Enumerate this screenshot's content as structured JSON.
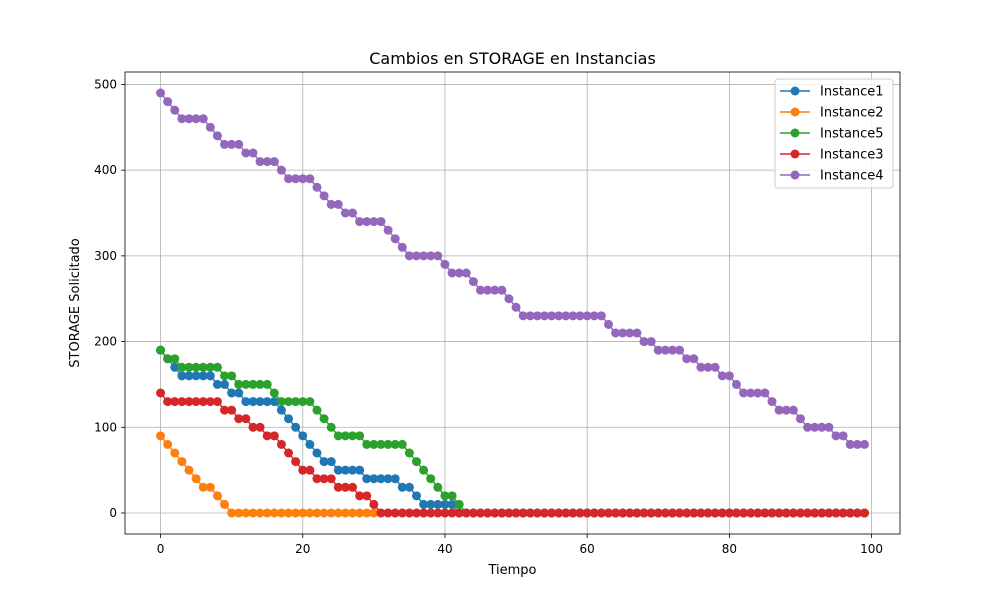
{
  "chart_data": {
    "type": "line",
    "title": "Cambios en STORAGE en Instancias",
    "xlabel": "Tiempo",
    "ylabel": "STORAGE Solicitado",
    "xlim": [
      -5,
      104
    ],
    "ylim": [
      -24.5,
      514.5
    ],
    "xticks": [
      0,
      20,
      40,
      60,
      80,
      100
    ],
    "yticks": [
      0,
      100,
      200,
      300,
      400,
      500
    ],
    "grid": true,
    "legend_position": "top-right",
    "marker": "circle",
    "series": [
      {
        "name": "Instance1",
        "color": "#1f77b4",
        "x_start": 0,
        "values": [
          190,
          180,
          170,
          160,
          160,
          160,
          160,
          160,
          150,
          150,
          140,
          140,
          130,
          130,
          130,
          130,
          130,
          120,
          110,
          100,
          90,
          80,
          70,
          60,
          60,
          50,
          50,
          50,
          50,
          40,
          40,
          40,
          40,
          40,
          30,
          30,
          20,
          10,
          10,
          10,
          10,
          10,
          0,
          0,
          0,
          0,
          0,
          0,
          0,
          0,
          0,
          0,
          0,
          0,
          0,
          0,
          0,
          0,
          0,
          0,
          0,
          0,
          0,
          0,
          0,
          0,
          0,
          0,
          0,
          0,
          0,
          0,
          0,
          0,
          0,
          0,
          0,
          0,
          0,
          0,
          0,
          0,
          0,
          0,
          0,
          0,
          0,
          0,
          0,
          0,
          0,
          0,
          0,
          0,
          0,
          0,
          0,
          0,
          0,
          0
        ]
      },
      {
        "name": "Instance2",
        "color": "#ff7f0e",
        "x_start": 0,
        "values": [
          90,
          80,
          70,
          60,
          50,
          40,
          30,
          30,
          20,
          10,
          0,
          0,
          0,
          0,
          0,
          0,
          0,
          0,
          0,
          0,
          0,
          0,
          0,
          0,
          0,
          0,
          0,
          0,
          0,
          0,
          0,
          0,
          0,
          0,
          0,
          0,
          0,
          0,
          0,
          0,
          0,
          0,
          0,
          0,
          0,
          0,
          0,
          0,
          0,
          0,
          0,
          0,
          0,
          0,
          0,
          0,
          0,
          0,
          0,
          0,
          0,
          0,
          0,
          0,
          0,
          0,
          0,
          0,
          0,
          0,
          0,
          0,
          0,
          0,
          0,
          0,
          0,
          0,
          0,
          0,
          0,
          0,
          0,
          0,
          0,
          0,
          0,
          0,
          0,
          0,
          0,
          0,
          0,
          0,
          0,
          0,
          0,
          0,
          0,
          0
        ]
      },
      {
        "name": "Instance5",
        "color": "#2ca02c",
        "x_start": 0,
        "values": [
          190,
          180,
          180,
          170,
          170,
          170,
          170,
          170,
          170,
          160,
          160,
          150,
          150,
          150,
          150,
          150,
          140,
          130,
          130,
          130,
          130,
          130,
          120,
          110,
          100,
          90,
          90,
          90,
          90,
          80,
          80,
          80,
          80,
          80,
          80,
          70,
          60,
          50,
          40,
          30,
          20,
          20,
          10,
          0,
          0,
          0,
          0,
          0,
          0,
          0,
          0,
          0,
          0,
          0,
          0,
          0,
          0,
          0,
          0,
          0,
          0,
          0,
          0,
          0,
          0,
          0,
          0,
          0,
          0,
          0,
          0,
          0,
          0,
          0,
          0,
          0,
          0,
          0,
          0,
          0,
          0,
          0,
          0,
          0,
          0,
          0,
          0,
          0,
          0,
          0,
          0,
          0,
          0,
          0,
          0,
          0,
          0,
          0,
          0,
          0
        ]
      },
      {
        "name": "Instance3",
        "color": "#d62728",
        "x_start": 0,
        "values": [
          140,
          130,
          130,
          130,
          130,
          130,
          130,
          130,
          130,
          120,
          120,
          110,
          110,
          100,
          100,
          90,
          90,
          80,
          70,
          60,
          50,
          50,
          40,
          40,
          40,
          30,
          30,
          30,
          20,
          20,
          10,
          0,
          0,
          0,
          0,
          0,
          0,
          0,
          0,
          0,
          0,
          0,
          0,
          0,
          0,
          0,
          0,
          0,
          0,
          0,
          0,
          0,
          0,
          0,
          0,
          0,
          0,
          0,
          0,
          0,
          0,
          0,
          0,
          0,
          0,
          0,
          0,
          0,
          0,
          0,
          0,
          0,
          0,
          0,
          0,
          0,
          0,
          0,
          0,
          0,
          0,
          0,
          0,
          0,
          0,
          0,
          0,
          0,
          0,
          0,
          0,
          0,
          0,
          0,
          0,
          0,
          0,
          0,
          0,
          0
        ]
      },
      {
        "name": "Instance4",
        "color": "#9467bd",
        "x_start": 0,
        "values": [
          490,
          480,
          470,
          460,
          460,
          460,
          460,
          450,
          440,
          430,
          430,
          430,
          420,
          420,
          410,
          410,
          410,
          400,
          390,
          390,
          390,
          390,
          380,
          370,
          360,
          360,
          350,
          350,
          340,
          340,
          340,
          340,
          330,
          320,
          310,
          300,
          300,
          300,
          300,
          300,
          290,
          280,
          280,
          280,
          270,
          260,
          260,
          260,
          260,
          250,
          240,
          230,
          230,
          230,
          230,
          230,
          230,
          230,
          230,
          230,
          230,
          230,
          230,
          220,
          210,
          210,
          210,
          210,
          200,
          200,
          190,
          190,
          190,
          190,
          180,
          180,
          170,
          170,
          170,
          160,
          160,
          150,
          140,
          140,
          140,
          140,
          130,
          120,
          120,
          120,
          110,
          100,
          100,
          100,
          100,
          90,
          90,
          80,
          80,
          80
        ]
      }
    ]
  }
}
